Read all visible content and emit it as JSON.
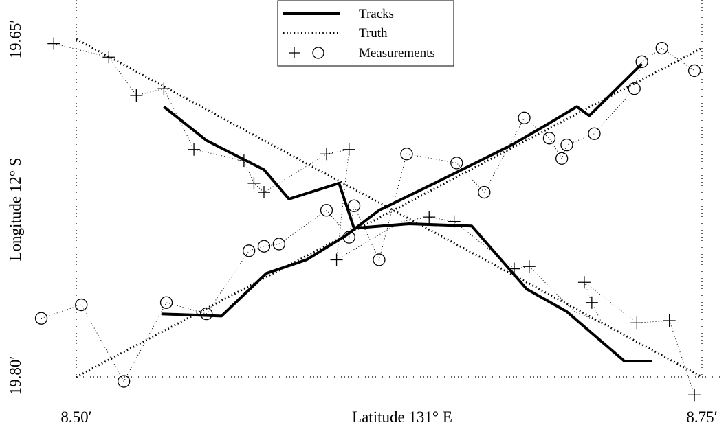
{
  "chart_data": {
    "type": "line",
    "xlabel": "Latitude 131° E",
    "ylabel": "Longitude 12° S",
    "x_ticks": [
      "8.50′",
      "8.75′"
    ],
    "y_ticks": [
      "19.65′",
      "19.80′"
    ],
    "xlim": [
      8.5,
      8.75
    ],
    "ylim": [
      19.65,
      19.8
    ],
    "grid": "dotted lines at axis limits",
    "legend_position": "top-center",
    "legend": [
      {
        "label": "Tracks",
        "style": "solid"
      },
      {
        "label": "Truth",
        "style": "dotted"
      },
      {
        "label": "Measurements",
        "style": "markers",
        "markers": [
          "+",
          "○"
        ]
      }
    ],
    "series": [
      {
        "name": "Tracks",
        "style": "solid",
        "target": "plus-target",
        "x": [
          8.535,
          8.552,
          8.575,
          8.585,
          8.605,
          8.611,
          8.633,
          8.658,
          8.68,
          8.696,
          8.719,
          8.73
        ],
        "y": [
          19.68,
          19.695,
          19.708,
          19.721,
          19.714,
          19.734,
          19.732,
          19.733,
          19.761,
          19.771,
          19.793,
          19.793
        ]
      },
      {
        "name": "Tracks",
        "style": "solid",
        "target": "circle-target",
        "x": [
          8.534,
          8.558,
          8.576,
          8.592,
          8.608,
          8.621,
          8.645,
          8.674,
          8.688,
          8.7,
          8.705,
          8.726
        ],
        "y": [
          19.772,
          19.773,
          19.754,
          19.748,
          19.737,
          19.726,
          19.713,
          19.697,
          19.688,
          19.68,
          19.684,
          19.661
        ]
      },
      {
        "name": "Truth",
        "style": "dotted",
        "target": "plus-target",
        "x": [
          8.5,
          8.75
        ],
        "y": [
          19.65,
          19.8
        ]
      },
      {
        "name": "Truth",
        "style": "dotted",
        "target": "circle-target",
        "x": [
          8.5,
          8.75
        ],
        "y": [
          19.8,
          19.654
        ]
      },
      {
        "name": "Measurements",
        "marker": "+",
        "x": [
          8.491,
          8.513,
          8.524,
          8.535,
          8.547,
          8.567,
          8.571,
          8.575,
          8.6,
          8.609,
          8.604,
          8.641,
          8.651,
          8.675,
          8.681,
          8.706,
          8.703,
          8.724,
          8.737,
          8.747
        ],
        "y": [
          19.652,
          19.658,
          19.675,
          19.672,
          19.699,
          19.704,
          19.714,
          19.718,
          19.701,
          19.699,
          19.748,
          19.729,
          19.731,
          19.752,
          19.751,
          19.767,
          19.758,
          19.776,
          19.775,
          19.808
        ],
        "guide_path": [
          [
            8.491,
            19.652
          ],
          [
            8.513,
            19.658
          ],
          [
            8.524,
            19.675
          ],
          [
            8.535,
            19.672
          ],
          [
            8.547,
            19.699
          ],
          [
            8.567,
            19.704
          ],
          [
            8.571,
            19.714
          ],
          [
            8.575,
            19.718
          ],
          [
            8.6,
            19.701
          ],
          [
            8.609,
            19.699
          ],
          [
            8.604,
            19.748
          ],
          [
            8.63,
            19.731
          ],
          [
            8.641,
            19.729
          ],
          [
            8.651,
            19.731
          ],
          [
            8.675,
            19.752
          ],
          [
            8.681,
            19.751
          ],
          [
            8.699,
            19.771
          ],
          [
            8.71,
            19.776
          ],
          [
            8.706,
            19.767
          ],
          [
            8.703,
            19.758
          ],
          [
            8.724,
            19.776
          ],
          [
            8.737,
            19.775
          ],
          [
            8.747,
            19.808
          ]
        ]
      },
      {
        "name": "Measurements",
        "marker": "○",
        "x": [
          8.486,
          8.502,
          8.519,
          8.536,
          8.552,
          8.569,
          8.575,
          8.581,
          8.6,
          8.609,
          8.611,
          8.621,
          8.632,
          8.652,
          8.663,
          8.679,
          8.689,
          8.694,
          8.696,
          8.707,
          8.723,
          8.726,
          8.734,
          8.747
        ],
        "y": [
          19.774,
          19.768,
          19.802,
          19.767,
          19.772,
          19.744,
          19.742,
          19.741,
          19.726,
          19.738,
          19.724,
          19.748,
          19.701,
          19.705,
          19.718,
          19.685,
          19.694,
          19.703,
          19.697,
          19.692,
          19.672,
          19.66,
          19.654,
          19.664
        ],
        "guide_path": [
          [
            8.486,
            19.774
          ],
          [
            8.502,
            19.768
          ],
          [
            8.519,
            19.802
          ],
          [
            8.536,
            19.767
          ],
          [
            8.552,
            19.772
          ],
          [
            8.569,
            19.744
          ],
          [
            8.575,
            19.742
          ],
          [
            8.581,
            19.741
          ],
          [
            8.6,
            19.726
          ],
          [
            8.609,
            19.738
          ],
          [
            8.611,
            19.724
          ],
          [
            8.621,
            19.748
          ],
          [
            8.632,
            19.701
          ],
          [
            8.652,
            19.705
          ],
          [
            8.663,
            19.718
          ],
          [
            8.679,
            19.685
          ],
          [
            8.689,
            19.694
          ],
          [
            8.694,
            19.703
          ],
          [
            8.696,
            19.697
          ],
          [
            8.707,
            19.692
          ],
          [
            8.723,
            19.672
          ],
          [
            8.726,
            19.66
          ],
          [
            8.734,
            19.654
          ],
          [
            8.747,
            19.664
          ]
        ]
      }
    ]
  }
}
